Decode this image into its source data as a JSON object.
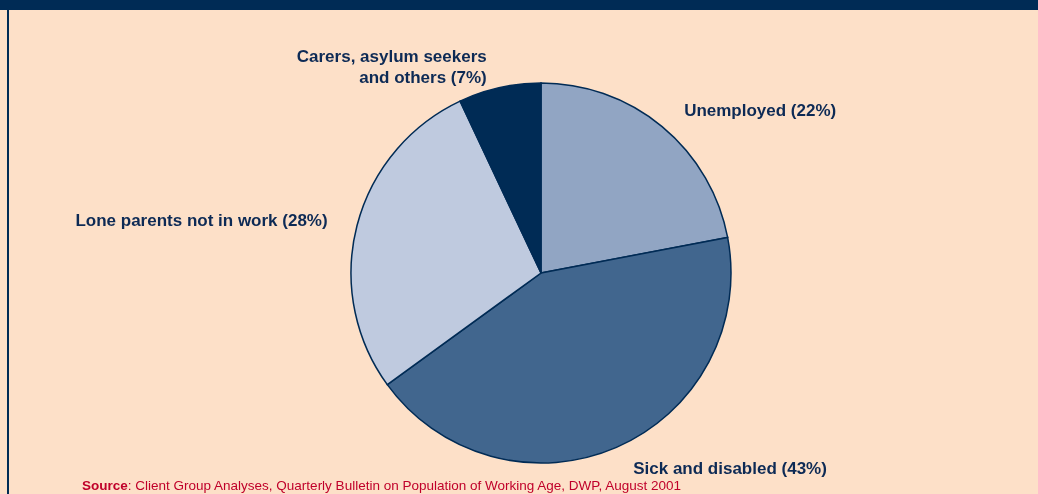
{
  "chart_data": {
    "type": "pie",
    "categories": [
      "Unemployed (22%)",
      "Sick and disabled (43%)",
      "Lone parents not in work (28%)",
      "Carers, asylum seekers and others (7%)"
    ],
    "values": [
      22,
      43,
      28,
      7
    ],
    "colors": [
      "#91a5c3",
      "#41668e",
      "#bfcadf",
      "#002b55"
    ],
    "annotations": [
      "Source: Client Group Analyses, Quarterly Bulletin on Population of Working Age, DWP, August 2001"
    ],
    "legend": false
  }
}
